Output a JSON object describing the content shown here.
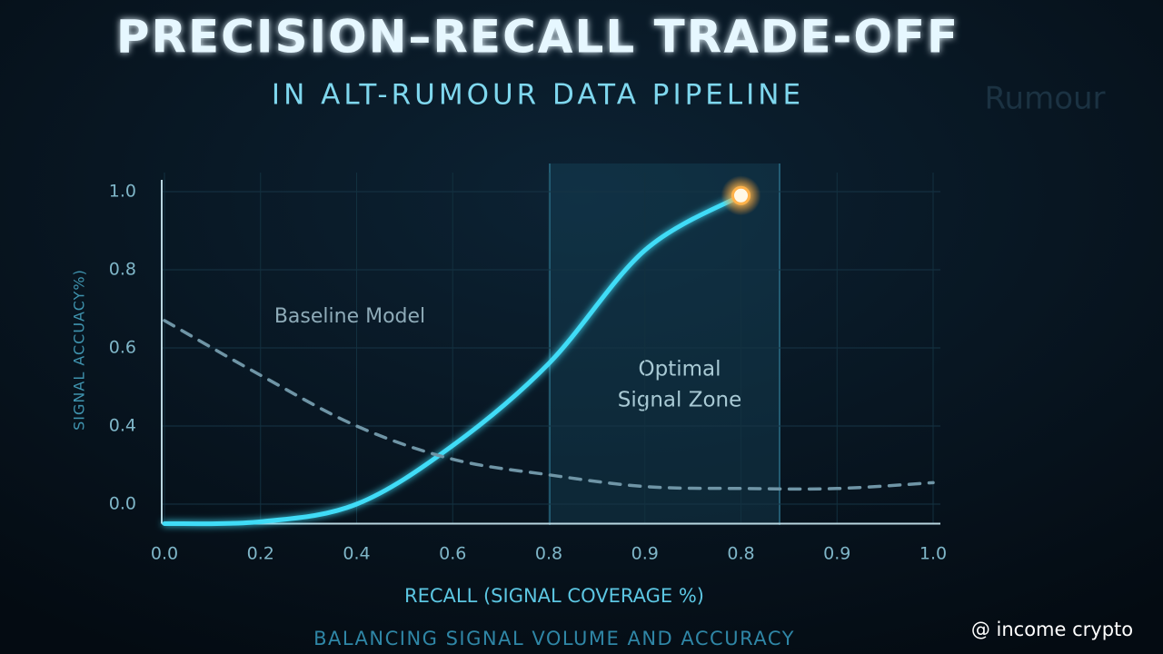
{
  "chart_data": {
    "type": "line",
    "title": "PRECISION–RECALL TRADE-OFF",
    "subtitle": "IN ALT-RUMOUR DATA PIPELINE",
    "x_label": "RECALL (SIGNAL COVERAGE %)",
    "y_label": "SIGNAL ACCUACY%)",
    "footer": "BALANCING SIGNAL VOLUME AND ACCURACY",
    "watermark": "@ income crypto",
    "background_text": "Rumour",
    "zone_label": [
      "Optimal",
      "Signal Zone"
    ],
    "categories": [
      "0.0",
      "0.2",
      "0.4",
      "0.6",
      "0.8",
      "0.9",
      "0.8",
      "0.9",
      "1.0"
    ],
    "series": [
      {
        "color": "#3fdcf7",
        "values": [
          -0.1,
          -0.09,
          0,
          0.3,
          0.56,
          0.85,
          0.99,
          null,
          null
        ]
      },
      {
        "name": "Baseline Model",
        "color": "#6f95a6",
        "dashed": true,
        "values": [
          0.67,
          0.53,
          0.4,
          0.23,
          0.15,
          0.09,
          0.08,
          0.08,
          0.11
        ]
      }
    ],
    "ylim": [
      -0.1,
      1
    ],
    "yticks": [
      {
        "value": 0,
        "label": "0.0"
      },
      0.4,
      0.6,
      0.8,
      {
        "value": 1,
        "label": "1.0"
      }
    ],
    "grid": true
  }
}
